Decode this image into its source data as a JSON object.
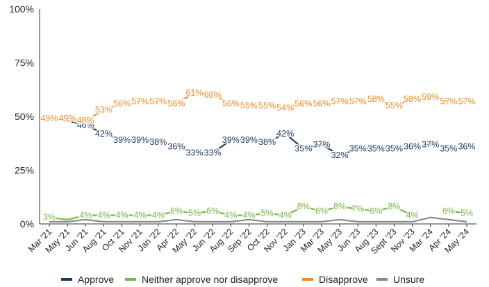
{
  "chart_data": {
    "type": "line",
    "title": "",
    "xlabel": "",
    "ylabel": "",
    "ylim": [
      0,
      100
    ],
    "y_ticks": [
      "0%",
      "25%",
      "50%",
      "75%",
      "100%"
    ],
    "grid": false,
    "legend_position": "bottom",
    "categories": [
      "Mar '21",
      "May '21",
      "Jun '21",
      "Aug '21",
      "Oct '21",
      "Nov '21",
      "Jan '22",
      "Apr '22",
      "May '22",
      "Jun '22",
      "Aug '22",
      "Sep '22",
      "Oct '22",
      "Nov '22",
      "Jan '23",
      "Mar '23",
      "May '23",
      "Jun '23",
      "Aug '23",
      "Sept '23",
      "Nov '23",
      "Mar '24",
      "Apr '24",
      "May '24"
    ],
    "series": [
      {
        "name": "Approve",
        "color": "#1f3a5a",
        "values": [
          49,
          48,
          46,
          42,
          39,
          39,
          38,
          36,
          33,
          33,
          39,
          39,
          38,
          42,
          35,
          37,
          32,
          35,
          35,
          35,
          36,
          37,
          35,
          36
        ],
        "labels": [
          "",
          "",
          "46%",
          "42%",
          "39%",
          "39%",
          "38%",
          "36%",
          "33%",
          "33%",
          "39%",
          "39%",
          "38%",
          "42%",
          "35%",
          "37%",
          "32%",
          "35%",
          "35%",
          "35%",
          "36%",
          "37%",
          "35%",
          "36%"
        ]
      },
      {
        "name": "Neither approve nor disapprove",
        "color": "#7ab648",
        "values": [
          3,
          2,
          4,
          4,
          4,
          4,
          4,
          6,
          5,
          6,
          4,
          4,
          5,
          4,
          8,
          6,
          8,
          7,
          6,
          8,
          4,
          null,
          6,
          5
        ],
        "labels": [
          "3%",
          "",
          "4%",
          "4%",
          "4%",
          "4%",
          "4%",
          "6%",
          "5%",
          "6%",
          "4%",
          "4%",
          "5%",
          "4%",
          "8%",
          "6%",
          "8%",
          "7%",
          "6%",
          "8%",
          "4%",
          "",
          "6%",
          "5%"
        ]
      },
      {
        "name": "Disapprove",
        "color": "#f08a24",
        "values": [
          49,
          49,
          48,
          53,
          56,
          57,
          57,
          56,
          61,
          60,
          56,
          55,
          55,
          54,
          56,
          56,
          57,
          57,
          58,
          55,
          58,
          59,
          57,
          57
        ],
        "labels": [
          "49%",
          "49%",
          "48%",
          "53%",
          "56%",
          "57%",
          "57%",
          "56%",
          "61%",
          "60%",
          "56%",
          "55%",
          "55%",
          "54%",
          "56%",
          "56%",
          "57%",
          "57%",
          "58%",
          "55%",
          "58%",
          "59%",
          "57%",
          "57%"
        ]
      },
      {
        "name": "Unsure",
        "color": "#8a8a8a",
        "values": [
          1,
          1,
          2,
          1,
          1,
          1,
          1,
          2,
          1,
          1,
          1,
          2,
          1,
          1,
          1,
          1,
          2,
          1,
          1,
          1,
          1,
          3,
          2,
          1
        ],
        "labels": []
      }
    ]
  }
}
